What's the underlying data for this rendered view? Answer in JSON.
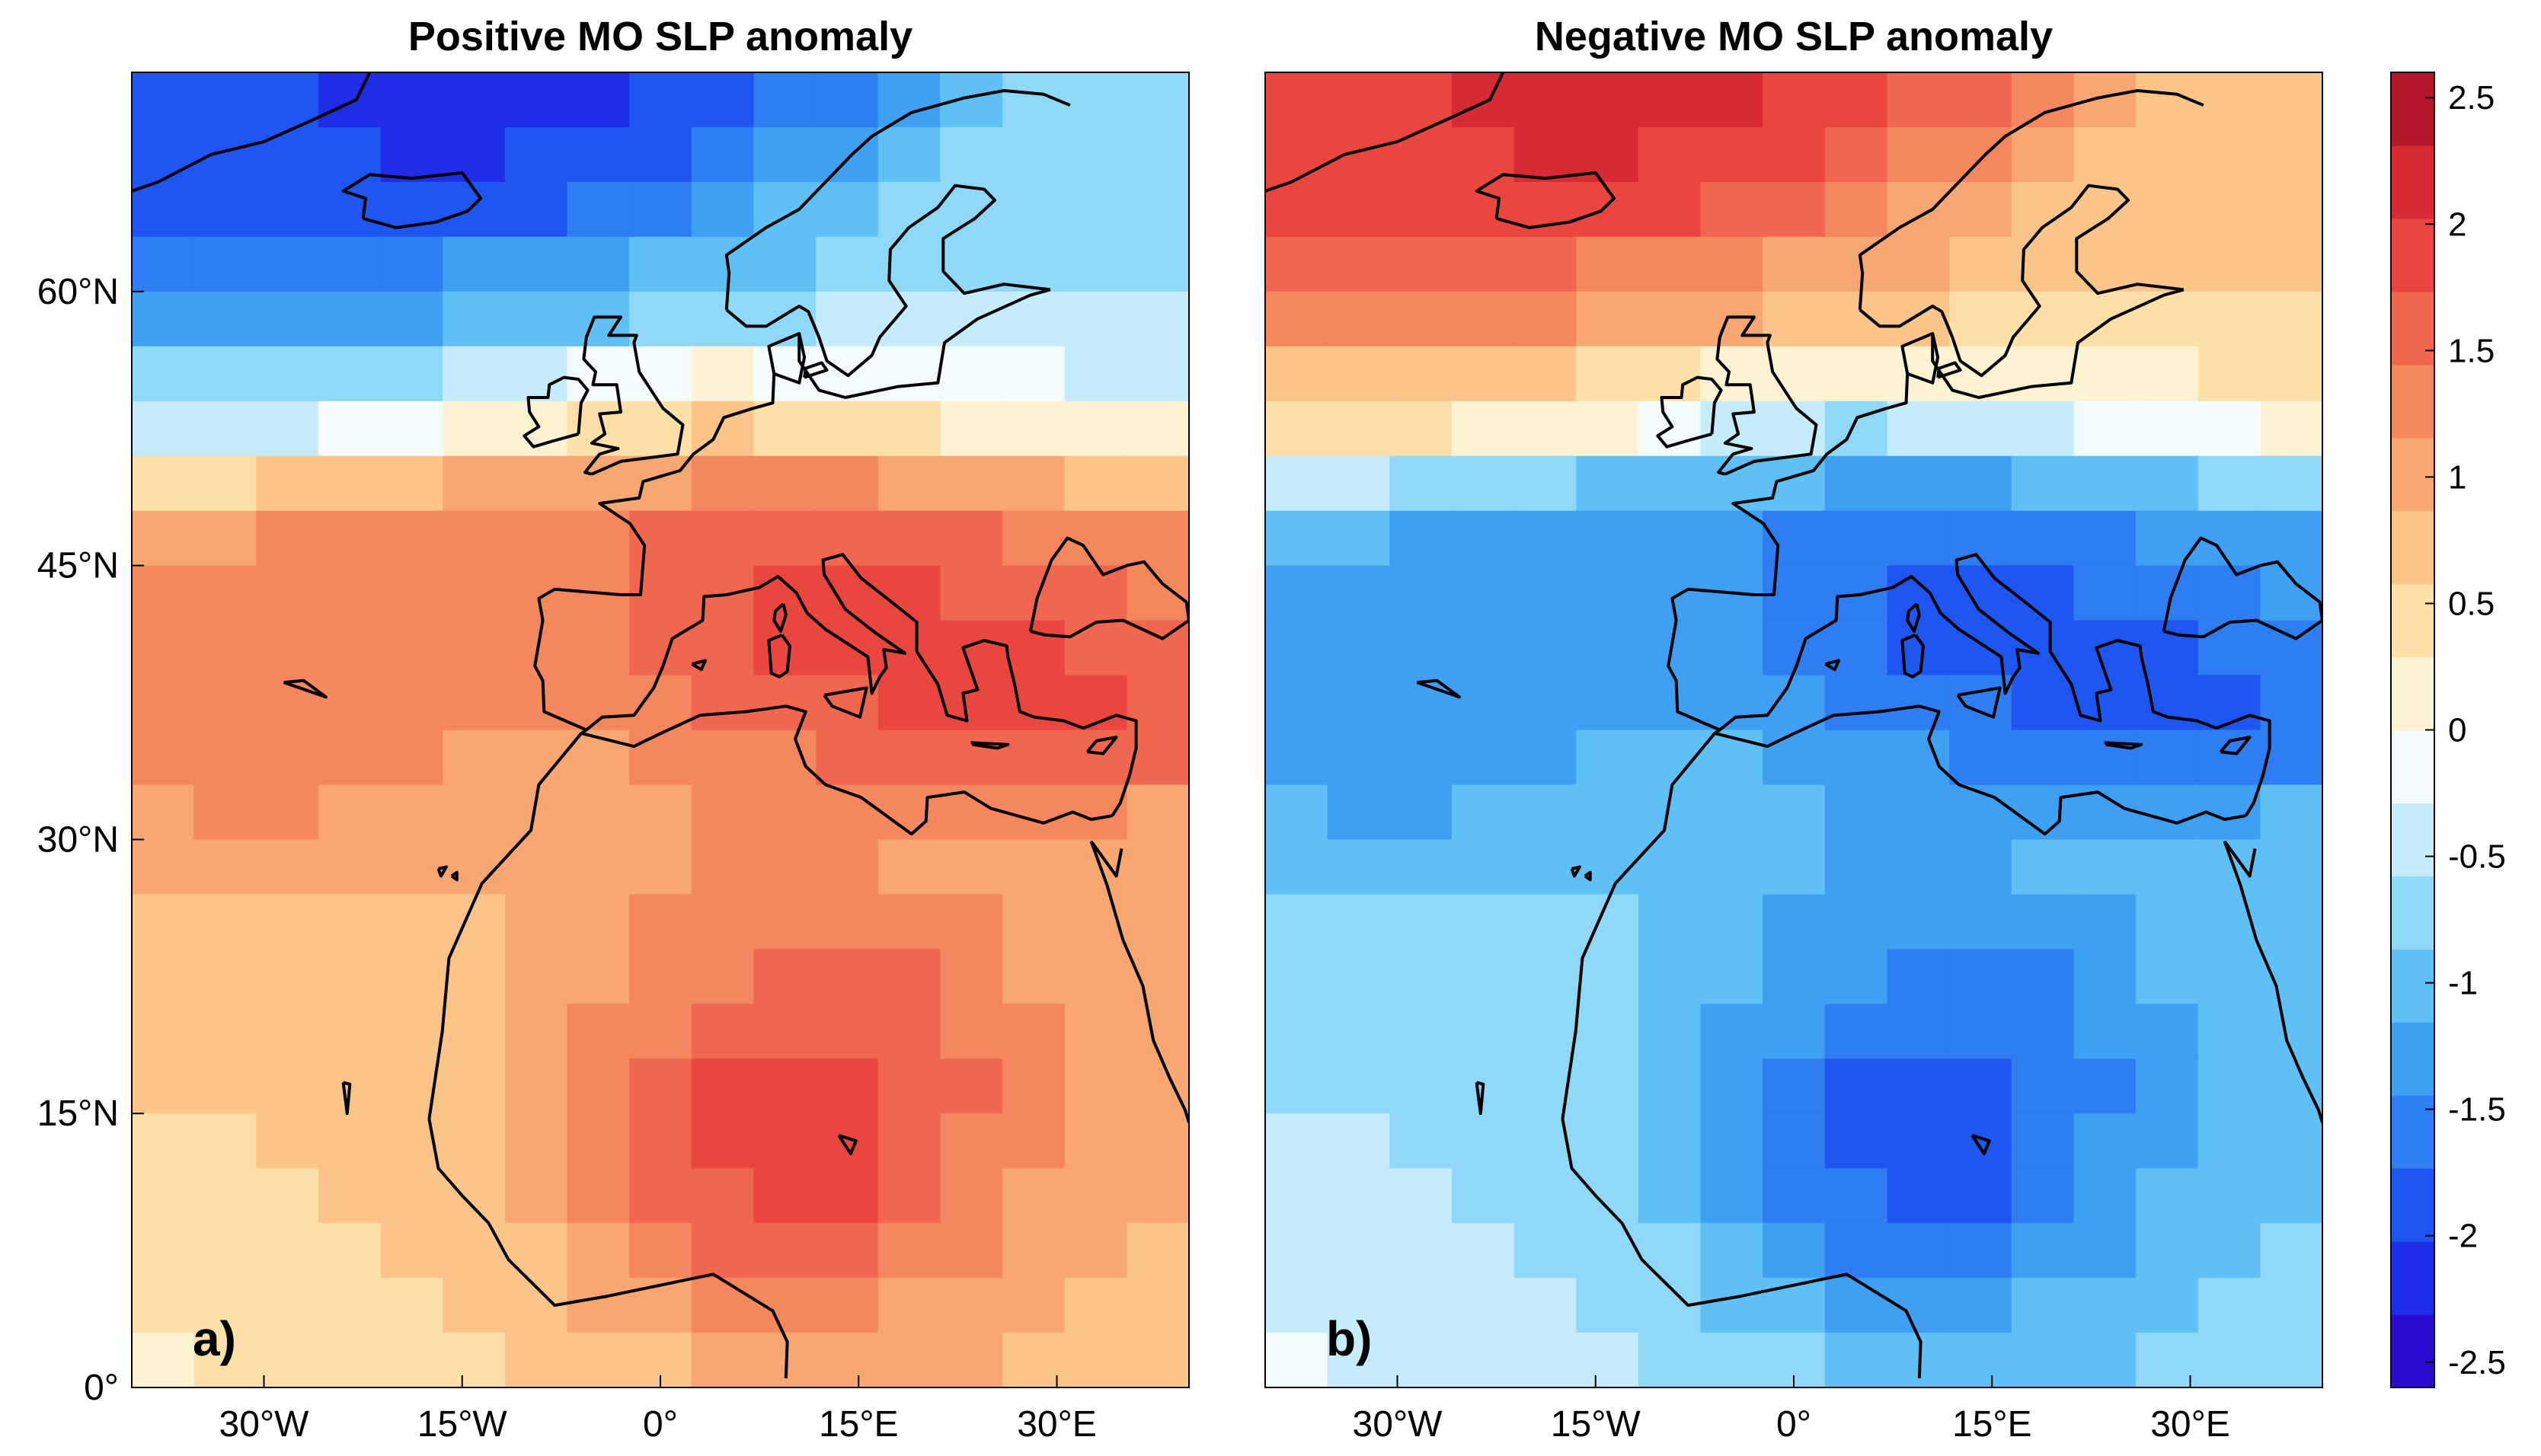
{
  "panels": [
    {
      "title": "Positive MO SLP anomaly",
      "label": "a)",
      "sign": 1
    },
    {
      "title": "Negative MO SLP anomaly",
      "label": "b)",
      "sign": -1
    }
  ],
  "axes": {
    "lon_range": [
      -40,
      40
    ],
    "lat_range": [
      0,
      72
    ],
    "x_ticks": [
      {
        "value": -30,
        "label": "30°W"
      },
      {
        "value": -15,
        "label": "15°W"
      },
      {
        "value": 0,
        "label": "0°"
      },
      {
        "value": 15,
        "label": "15°E"
      },
      {
        "value": 30,
        "label": "30°E"
      }
    ],
    "y_ticks": [
      {
        "value": 60,
        "label": "60°N"
      },
      {
        "value": 45,
        "label": "45°N"
      },
      {
        "value": 30,
        "label": "30°N"
      },
      {
        "value": 15,
        "label": "15°N"
      },
      {
        "value": 0,
        "label": "0°"
      }
    ]
  },
  "colorbar": {
    "range": [
      -2.6,
      2.6
    ],
    "ticks": [
      {
        "value": 2.5,
        "label": "2.5"
      },
      {
        "value": 2,
        "label": "2"
      },
      {
        "value": 1.5,
        "label": "1.5"
      },
      {
        "value": 1,
        "label": "1"
      },
      {
        "value": 0.5,
        "label": "0.5"
      },
      {
        "value": 0,
        "label": "0"
      },
      {
        "value": -0.5,
        "label": "-0.5"
      },
      {
        "value": -1,
        "label": "-1"
      },
      {
        "value": -1.5,
        "label": "-1.5"
      },
      {
        "value": -2,
        "label": "-2"
      },
      {
        "value": -2.5,
        "label": "-2.5"
      }
    ],
    "colors": [
      "#2a0bd0",
      "#1f2ee6",
      "#1f55f0",
      "#2f7df2",
      "#3f9ff2",
      "#5fc0f5",
      "#8fd8f8",
      "#c5ecfb",
      "#f4fbfd",
      "#fdf3d2",
      "#fde0a8",
      "#fbc58a",
      "#f8a672",
      "#f4875e",
      "#f0664e",
      "#e94640",
      "#d82a34",
      "#b5182c"
    ]
  },
  "chart_data": {
    "type": "heatmap",
    "description_fields": "SLP anomaly grid (positive pattern); panel b is the negated field",
    "grid": {
      "lon_start": -40,
      "lon_step": 4.9,
      "lat_start": 72,
      "lat_step": -3.3,
      "rows": [
        [
          -1.9,
          -1.9,
          -1.9,
          -2.1,
          -2.2,
          -2.2,
          -2.2,
          -2.2,
          -2.0,
          -2.0,
          -1.7,
          -1.5,
          -1.3,
          -1.0,
          -0.8,
          -0.8,
          -0.6
        ],
        [
          -2.0,
          -2.0,
          -1.9,
          -2.0,
          -2.1,
          -2.1,
          -2.0,
          -2.0,
          -1.8,
          -1.6,
          -1.4,
          -1.2,
          -1.0,
          -0.8,
          -0.7,
          -0.7,
          -0.6
        ],
        [
          -2.0,
          -1.9,
          -1.8,
          -1.8,
          -1.9,
          -1.9,
          -1.8,
          -1.6,
          -1.5,
          -1.3,
          -1.1,
          -0.9,
          -0.8,
          -0.7,
          -0.6,
          -0.6,
          -0.6
        ],
        [
          -1.7,
          -1.6,
          -1.5,
          -1.5,
          -1.5,
          -1.4,
          -1.3,
          -1.2,
          -1.1,
          -1.0,
          -0.9,
          -0.8,
          -0.7,
          -0.6,
          -0.6,
          -0.6,
          -0.6
        ],
        [
          -1.4,
          -1.3,
          -1.3,
          -1.2,
          -1.2,
          -1.1,
          -1.0,
          -0.9,
          -0.8,
          -0.7,
          -0.6,
          -0.5,
          -0.5,
          -0.4,
          -0.4,
          -0.4,
          -0.4
        ],
        [
          -0.8,
          -0.8,
          -0.8,
          -0.7,
          -0.6,
          -0.5,
          -0.4,
          -0.2,
          -0.1,
          0.0,
          -0.1,
          -0.2,
          -0.2,
          -0.2,
          -0.2,
          -0.3,
          -0.3
        ],
        [
          -0.3,
          -0.3,
          -0.3,
          -0.2,
          -0.1,
          0.0,
          0.2,
          0.4,
          0.5,
          0.6,
          0.5,
          0.4,
          0.3,
          0.2,
          0.2,
          0.1,
          0.0
        ],
        [
          0.4,
          0.5,
          0.6,
          0.7,
          0.8,
          0.9,
          1.0,
          1.1,
          1.1,
          1.2,
          1.2,
          1.2,
          1.1,
          1.0,
          0.9,
          0.8,
          0.6
        ],
        [
          1.1,
          1.1,
          1.2,
          1.2,
          1.2,
          1.2,
          1.3,
          1.4,
          1.5,
          1.6,
          1.7,
          1.7,
          1.6,
          1.5,
          1.4,
          1.3,
          1.2
        ],
        [
          1.2,
          1.3,
          1.3,
          1.3,
          1.3,
          1.3,
          1.3,
          1.4,
          1.6,
          1.7,
          1.8,
          1.8,
          1.8,
          1.7,
          1.6,
          1.5,
          1.4
        ],
        [
          1.3,
          1.4,
          1.4,
          1.4,
          1.4,
          1.3,
          1.3,
          1.3,
          1.5,
          1.6,
          1.8,
          1.9,
          1.9,
          1.8,
          1.8,
          1.7,
          1.6
        ],
        [
          1.3,
          1.4,
          1.4,
          1.4,
          1.3,
          1.3,
          1.2,
          1.2,
          1.3,
          1.5,
          1.6,
          1.7,
          1.8,
          1.8,
          1.8,
          1.8,
          1.7
        ],
        [
          1.2,
          1.3,
          1.3,
          1.2,
          1.2,
          1.1,
          1.1,
          1.1,
          1.2,
          1.3,
          1.4,
          1.5,
          1.6,
          1.6,
          1.6,
          1.6,
          1.5
        ],
        [
          1.1,
          1.2,
          1.2,
          1.1,
          1.1,
          1.0,
          1.0,
          1.0,
          1.1,
          1.2,
          1.3,
          1.3,
          1.3,
          1.3,
          1.2,
          1.2,
          1.1
        ],
        [
          0.9,
          1.0,
          1.0,
          1.0,
          0.9,
          0.9,
          0.9,
          1.0,
          1.1,
          1.2,
          1.2,
          1.2,
          1.1,
          1.1,
          1.0,
          1.0,
          0.9
        ],
        [
          0.8,
          0.8,
          0.8,
          0.8,
          0.8,
          0.8,
          0.9,
          1.0,
          1.2,
          1.3,
          1.4,
          1.4,
          1.3,
          1.2,
          1.1,
          1.0,
          0.9
        ],
        [
          0.7,
          0.7,
          0.7,
          0.7,
          0.7,
          0.8,
          0.9,
          1.1,
          1.3,
          1.4,
          1.5,
          1.5,
          1.5,
          1.3,
          1.1,
          1.0,
          0.9
        ],
        [
          0.6,
          0.6,
          0.6,
          0.6,
          0.7,
          0.8,
          1.0,
          1.2,
          1.4,
          1.6,
          1.7,
          1.7,
          1.6,
          1.4,
          1.2,
          1.0,
          0.9
        ],
        [
          0.6,
          0.6,
          0.6,
          0.6,
          0.7,
          0.8,
          1.0,
          1.3,
          1.5,
          1.8,
          1.9,
          1.9,
          1.7,
          1.5,
          1.2,
          1.0,
          0.9
        ],
        [
          0.5,
          0.5,
          0.6,
          0.6,
          0.6,
          0.8,
          1.0,
          1.3,
          1.6,
          1.8,
          2.0,
          1.9,
          1.7,
          1.4,
          1.2,
          1.0,
          0.9
        ],
        [
          0.5,
          0.5,
          0.5,
          0.6,
          0.6,
          0.7,
          0.9,
          1.2,
          1.5,
          1.7,
          1.8,
          1.8,
          1.6,
          1.4,
          1.1,
          1.0,
          0.9
        ],
        [
          0.4,
          0.4,
          0.5,
          0.5,
          0.6,
          0.7,
          0.8,
          1.1,
          1.3,
          1.5,
          1.6,
          1.5,
          1.4,
          1.2,
          1.0,
          0.9,
          0.8
        ],
        [
          0.3,
          0.4,
          0.4,
          0.5,
          0.5,
          0.6,
          0.7,
          0.9,
          1.1,
          1.2,
          1.3,
          1.2,
          1.1,
          1.0,
          0.9,
          0.8,
          0.8
        ],
        [
          0.2,
          0.3,
          0.3,
          0.4,
          0.4,
          0.5,
          0.6,
          0.7,
          0.8,
          0.9,
          0.9,
          0.9,
          0.9,
          0.9,
          0.8,
          0.8,
          0.8
        ]
      ]
    }
  }
}
